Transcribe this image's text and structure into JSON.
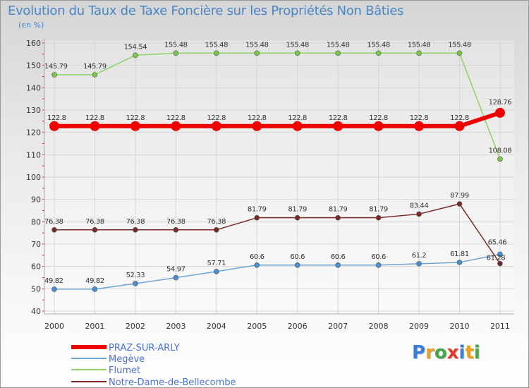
{
  "header": {
    "title": "Evolution du Taux de Taxe Foncière sur les Propriétés Non Bâties",
    "subtitle": "(en %)"
  },
  "logo": {
    "text": "Proxiti",
    "letters": [
      "P",
      "r",
      "o",
      "x",
      "i",
      "t",
      "i"
    ]
  },
  "chart_data": {
    "type": "line",
    "title": "Evolution du Taux de Taxe Foncière sur les Propriétés Non Bâties",
    "ylabel": "(en %)",
    "xlabel": "",
    "ylim": [
      40,
      160
    ],
    "yticks": [
      40,
      50,
      60,
      70,
      80,
      90,
      100,
      110,
      120,
      130,
      140,
      150,
      160
    ],
    "categories": [
      "2000",
      "2001",
      "2002",
      "2003",
      "2004",
      "2005",
      "2006",
      "2007",
      "2008",
      "2009",
      "2010",
      "2011"
    ],
    "grid": true,
    "legend_position": "bottom-left",
    "series": [
      {
        "name": "PRAZ-SUR-ARLY",
        "color": "#ee0000",
        "values": [
          122.8,
          122.8,
          122.8,
          122.8,
          122.8,
          122.8,
          122.8,
          122.8,
          122.8,
          122.8,
          122.8,
          128.76
        ],
        "labels": [
          "122.8",
          "122.8",
          "122.8",
          "122.8",
          "122.8",
          "122.8",
          "122.8",
          "122.8",
          "122.8",
          "122.8",
          "122.8",
          "128.76"
        ]
      },
      {
        "name": "Megève",
        "color": "#6fa3d3",
        "values": [
          49.82,
          49.82,
          52.33,
          54.97,
          57.71,
          60.6,
          60.6,
          60.6,
          60.6,
          61.2,
          61.81,
          65.46
        ],
        "labels": [
          "49.82",
          "49.82",
          "52.33",
          "54.97",
          "57.71",
          "60.6",
          "60.6",
          "60.6",
          "60.6",
          "61.2",
          "61.81",
          "65.46"
        ]
      },
      {
        "name": "Flumet",
        "color": "#8fd166",
        "values": [
          145.79,
          145.79,
          154.54,
          155.48,
          155.48,
          155.48,
          155.48,
          155.48,
          155.48,
          155.48,
          155.48,
          108.08
        ],
        "labels": [
          "145.79",
          "145.79",
          "154.54",
          "155.48",
          "155.48",
          "155.48",
          "155.48",
          "155.48",
          "155.48",
          "155.48",
          "155.48",
          "108.08"
        ]
      },
      {
        "name": "Notre-Dame-de-Bellecombe",
        "color": "#7a2a2a",
        "values": [
          76.38,
          76.38,
          76.38,
          76.38,
          76.38,
          81.79,
          81.79,
          81.79,
          81.79,
          83.44,
          87.99,
          61.28
        ],
        "labels": [
          "76.38",
          "76.38",
          "76.38",
          "76.38",
          "76.38",
          "81.79",
          "81.79",
          "81.79",
          "81.79",
          "83.44",
          "87.99",
          "61.28"
        ]
      }
    ]
  }
}
